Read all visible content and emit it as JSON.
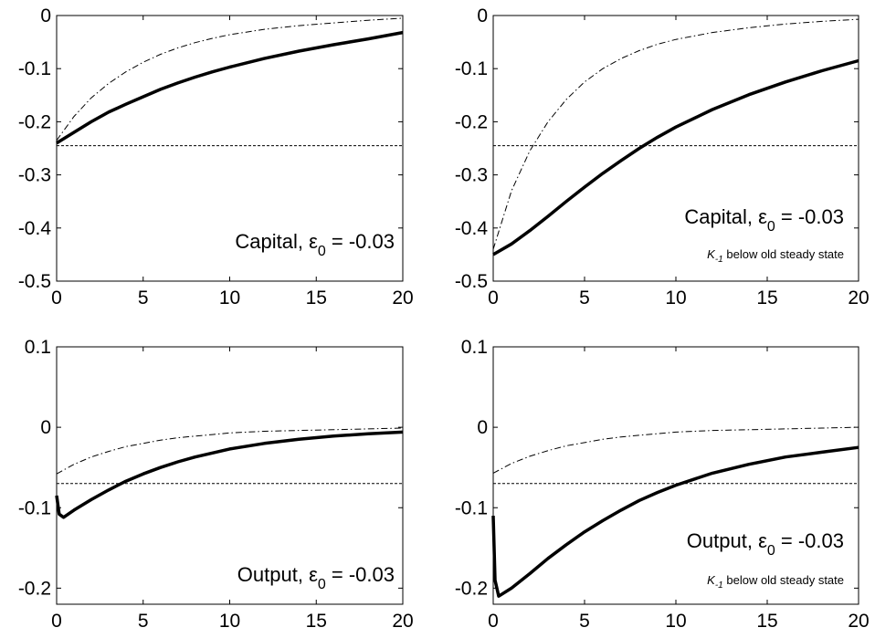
{
  "chart_data": [
    {
      "type": "line",
      "xlim": [
        0,
        20
      ],
      "ylim": [
        -0.5,
        0
      ],
      "xticks": [
        "0",
        "5",
        "10",
        "15",
        "20"
      ],
      "yticks": [
        "0",
        "-0.1",
        "-0.2",
        "-0.3",
        "-0.4",
        "-0.5"
      ],
      "annotation": {
        "prefix": "Capital, ",
        "eps": "ε",
        "sub": "0",
        "suffix": " = -0.03"
      },
      "note": "",
      "series": [
        {
          "style": "dashdot",
          "x": [
            0,
            1,
            2,
            3,
            4,
            5,
            6,
            7,
            8,
            9,
            10,
            12,
            14,
            16,
            18,
            20
          ],
          "y": [
            -0.235,
            -0.19,
            -0.155,
            -0.128,
            -0.106,
            -0.088,
            -0.073,
            -0.061,
            -0.051,
            -0.043,
            -0.036,
            -0.026,
            -0.019,
            -0.014,
            -0.009,
            -0.005
          ]
        },
        {
          "style": "thick",
          "x": [
            0,
            1,
            2,
            3,
            4,
            5,
            6,
            7,
            8,
            9,
            10,
            12,
            14,
            16,
            18,
            20
          ],
          "y": [
            -0.24,
            -0.22,
            -0.2,
            -0.182,
            -0.167,
            -0.153,
            -0.139,
            -0.127,
            -0.116,
            -0.106,
            -0.097,
            -0.081,
            -0.067,
            -0.055,
            -0.044,
            -0.032
          ]
        },
        {
          "style": "dashed",
          "x": [
            0,
            20
          ],
          "y": [
            -0.245,
            -0.245
          ]
        }
      ]
    },
    {
      "type": "line",
      "xlim": [
        0,
        20
      ],
      "ylim": [
        -0.5,
        0
      ],
      "xticks": [
        "0",
        "5",
        "10",
        "15",
        "20"
      ],
      "yticks": [
        "0",
        "-0.1",
        "-0.2",
        "-0.3",
        "-0.4",
        "-0.5"
      ],
      "annotation": {
        "prefix": "Capital, ",
        "eps": "ε",
        "sub": "0",
        "suffix": " = -0.03"
      },
      "note": {
        "k": "K",
        "sub": "-1",
        "text": " below old steady state"
      },
      "series": [
        {
          "style": "dashdot",
          "x": [
            0,
            1,
            2,
            3,
            4,
            5,
            6,
            7,
            8,
            9,
            10,
            12,
            14,
            16,
            18,
            20
          ],
          "y": [
            -0.44,
            -0.33,
            -0.255,
            -0.2,
            -0.158,
            -0.125,
            -0.1,
            -0.081,
            -0.066,
            -0.054,
            -0.045,
            -0.032,
            -0.023,
            -0.016,
            -0.011,
            -0.007
          ]
        },
        {
          "style": "thick",
          "x": [
            0,
            1,
            2,
            3,
            4,
            5,
            6,
            7,
            8,
            9,
            10,
            12,
            14,
            16,
            18,
            20
          ],
          "y": [
            -0.45,
            -0.43,
            -0.405,
            -0.378,
            -0.35,
            -0.323,
            -0.297,
            -0.273,
            -0.25,
            -0.229,
            -0.21,
            -0.177,
            -0.149,
            -0.125,
            -0.104,
            -0.085
          ]
        },
        {
          "style": "dashed",
          "x": [
            0,
            20
          ],
          "y": [
            -0.245,
            -0.245
          ]
        }
      ]
    },
    {
      "type": "line",
      "xlim": [
        0,
        20
      ],
      "ylim": [
        -0.22,
        0.1
      ],
      "xticks": [
        "0",
        "5",
        "10",
        "15",
        "20"
      ],
      "yticks": [
        "0.1",
        "0",
        "-0.1",
        "-0.2"
      ],
      "annotation": {
        "prefix": "Output,  ",
        "eps": "ε",
        "sub": "0",
        "suffix": " = -0.03"
      },
      "note": "",
      "series": [
        {
          "style": "dashdot",
          "x": [
            0,
            1,
            2,
            3,
            4,
            5,
            6,
            7,
            8,
            9,
            10,
            12,
            14,
            16,
            18,
            20
          ],
          "y": [
            -0.058,
            -0.046,
            -0.037,
            -0.03,
            -0.024,
            -0.02,
            -0.016,
            -0.013,
            -0.011,
            -0.009,
            -0.007,
            -0.005,
            -0.004,
            -0.003,
            -0.002,
            -0.001
          ]
        },
        {
          "style": "thick",
          "x": [
            0,
            0.15,
            0.4,
            1,
            2,
            3,
            4,
            5,
            6,
            7,
            8,
            9,
            10,
            12,
            14,
            16,
            18,
            20
          ],
          "y": [
            -0.085,
            -0.108,
            -0.112,
            -0.103,
            -0.09,
            -0.078,
            -0.067,
            -0.058,
            -0.05,
            -0.043,
            -0.037,
            -0.032,
            -0.027,
            -0.02,
            -0.015,
            -0.011,
            -0.008,
            -0.006
          ]
        },
        {
          "style": "dashed",
          "x": [
            0,
            20
          ],
          "y": [
            -0.07,
            -0.07
          ]
        }
      ]
    },
    {
      "type": "line",
      "xlim": [
        0,
        20
      ],
      "ylim": [
        -0.22,
        0.1
      ],
      "xticks": [
        "0",
        "5",
        "10",
        "15",
        "20"
      ],
      "yticks": [
        "0.1",
        "0",
        "-0.1",
        "-0.2"
      ],
      "annotation": {
        "prefix": "Output, ",
        "eps": "ε",
        "sub": "0",
        "suffix": " = -0.03"
      },
      "note": {
        "k": "K",
        "sub": "-1",
        "text": " below old steady state"
      },
      "series": [
        {
          "style": "dashdot",
          "x": [
            0,
            1,
            2,
            3,
            4,
            5,
            6,
            7,
            8,
            9,
            10,
            12,
            14,
            16,
            18,
            20
          ],
          "y": [
            -0.057,
            -0.045,
            -0.036,
            -0.029,
            -0.023,
            -0.019,
            -0.015,
            -0.012,
            -0.01,
            -0.008,
            -0.006,
            -0.004,
            -0.003,
            -0.002,
            -0.001,
            0.0
          ]
        },
        {
          "style": "thick",
          "x": [
            0,
            0.1,
            0.3,
            1,
            2,
            3,
            4,
            5,
            6,
            7,
            8,
            9,
            10,
            12,
            14,
            16,
            18,
            20
          ],
          "y": [
            -0.11,
            -0.19,
            -0.21,
            -0.2,
            -0.182,
            -0.163,
            -0.146,
            -0.13,
            -0.116,
            -0.103,
            -0.091,
            -0.081,
            -0.072,
            -0.057,
            -0.046,
            -0.037,
            -0.031,
            -0.025
          ]
        },
        {
          "style": "dashed",
          "x": [
            0,
            20
          ],
          "y": [
            -0.07,
            -0.07
          ]
        }
      ]
    }
  ]
}
